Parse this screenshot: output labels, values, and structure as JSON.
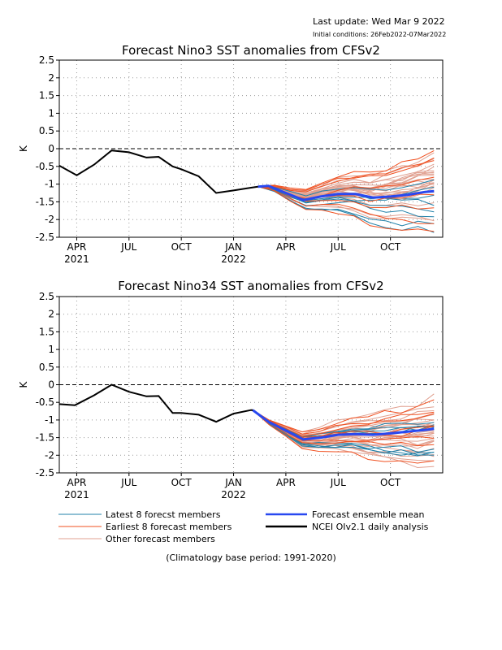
{
  "header": {
    "last_update": "Last update: Wed Mar 9 2022",
    "initial_condition": "Initial conditions: 26Feb2022-07Mar2022"
  },
  "legend": {
    "latest": "Latest 8 forecst members",
    "earliest": "Earliest 8 forecast members",
    "other": "Other forecast members",
    "mean": "Forecast ensemble mean",
    "obs": "NCEI OIv2.1 daily analysis"
  },
  "footnote": "(Climatology base period: 1991-2020)",
  "colors": {
    "latest": "#2080a8",
    "earliest": "#f05020",
    "other": "#e0a090",
    "mean": "#2848f0",
    "obs": "#000000"
  },
  "chart_data": [
    {
      "type": "line",
      "title": "Forecast Nino3 SST anomalies from CFSv2",
      "ylabel": "K",
      "ylim": [
        -2.5,
        2.5
      ],
      "yticks": [
        "2.5",
        "2",
        "1.5",
        "1",
        "0.5",
        "0",
        "-0.5",
        "-1",
        "-1.5",
        "-2",
        "-2.5"
      ],
      "xticks": [
        {
          "label": "APR",
          "sub": "2021",
          "m": 3
        },
        {
          "label": "JUL",
          "sub": "",
          "m": 6
        },
        {
          "label": "OCT",
          "sub": "",
          "m": 9
        },
        {
          "label": "JAN",
          "sub": "2022",
          "m": 12
        },
        {
          "label": "APR",
          "sub": "",
          "m": 15
        },
        {
          "label": "JUL",
          "sub": "",
          "m": 18
        },
        {
          "label": "OCT",
          "sub": "",
          "m": 21
        }
      ],
      "xrange": [
        2.0,
        24.0
      ],
      "grid": true,
      "observed": {
        "name": "NCEI OIv2.1 daily analysis",
        "x": [
          2.0,
          3.0,
          4.0,
          5.0,
          6.0,
          7.0,
          7.7,
          8.5,
          9.0,
          10.0,
          11.0,
          12.0,
          13.0,
          13.4
        ],
        "y": [
          -0.48,
          -0.75,
          -0.45,
          -0.05,
          -0.1,
          -0.25,
          -0.23,
          -0.5,
          -0.58,
          -0.78,
          -1.25,
          -1.18,
          -1.1,
          -1.07
        ]
      },
      "ensemble_mean": {
        "name": "Forecast ensemble mean",
        "x": [
          13.4,
          14.0,
          15.0,
          16.0,
          17.0,
          18.0,
          19.0,
          20.0,
          21.0,
          22.0,
          23.0,
          23.5
        ],
        "y": [
          -1.07,
          -1.05,
          -1.25,
          -1.45,
          -1.35,
          -1.28,
          -1.28,
          -1.38,
          -1.35,
          -1.3,
          -1.22,
          -1.2
        ]
      },
      "members": {
        "latest": 8,
        "earliest": 8,
        "other": 24,
        "x0": 13.4,
        "x1": 23.5,
        "earliest_extremes": [
          0.05,
          -2.2
        ],
        "latest_extremes": [
          -0.8,
          -2.5
        ]
      }
    },
    {
      "type": "line",
      "title": "Forecast Nino34 SST anomalies from CFSv2",
      "ylabel": "K",
      "ylim": [
        -2.5,
        2.5
      ],
      "yticks": [
        "2.5",
        "2",
        "1.5",
        "1",
        "0.5",
        "0",
        "-0.5",
        "-1",
        "-1.5",
        "-2",
        "-2.5"
      ],
      "xticks": [
        {
          "label": "APR",
          "sub": "2021",
          "m": 3
        },
        {
          "label": "JUL",
          "sub": "",
          "m": 6
        },
        {
          "label": "OCT",
          "sub": "",
          "m": 9
        },
        {
          "label": "JAN",
          "sub": "2022",
          "m": 12
        },
        {
          "label": "APR",
          "sub": "",
          "m": 15
        },
        {
          "label": "JUL",
          "sub": "",
          "m": 18
        },
        {
          "label": "OCT",
          "sub": "",
          "m": 21
        }
      ],
      "xrange": [
        2.0,
        24.0
      ],
      "grid": true,
      "observed": {
        "name": "NCEI OIv2.1 daily analysis",
        "x": [
          2.0,
          2.9,
          4.0,
          5.0,
          6.0,
          7.0,
          7.7,
          8.5,
          9.0,
          10.0,
          11.0,
          12.0,
          13.0,
          13.1
        ],
        "y": [
          -0.55,
          -0.58,
          -0.3,
          0.0,
          -0.2,
          -0.33,
          -0.32,
          -0.8,
          -0.8,
          -0.85,
          -1.05,
          -0.82,
          -0.72,
          -0.72
        ]
      },
      "ensemble_mean": {
        "name": "Forecast ensemble mean",
        "x": [
          13.1,
          14.0,
          15.0,
          16.0,
          17.0,
          18.0,
          19.0,
          20.0,
          21.0,
          22.0,
          23.0,
          23.5
        ],
        "y": [
          -0.72,
          -1.05,
          -1.3,
          -1.55,
          -1.5,
          -1.42,
          -1.4,
          -1.42,
          -1.38,
          -1.33,
          -1.28,
          -1.25
        ]
      },
      "members": {
        "latest": 8,
        "earliest": 8,
        "other": 24,
        "x0": 13.1,
        "x1": 23.5,
        "earliest_extremes": [
          -0.25,
          -2.05
        ],
        "latest_extremes": [
          -0.9,
          -2.2
        ]
      }
    }
  ]
}
